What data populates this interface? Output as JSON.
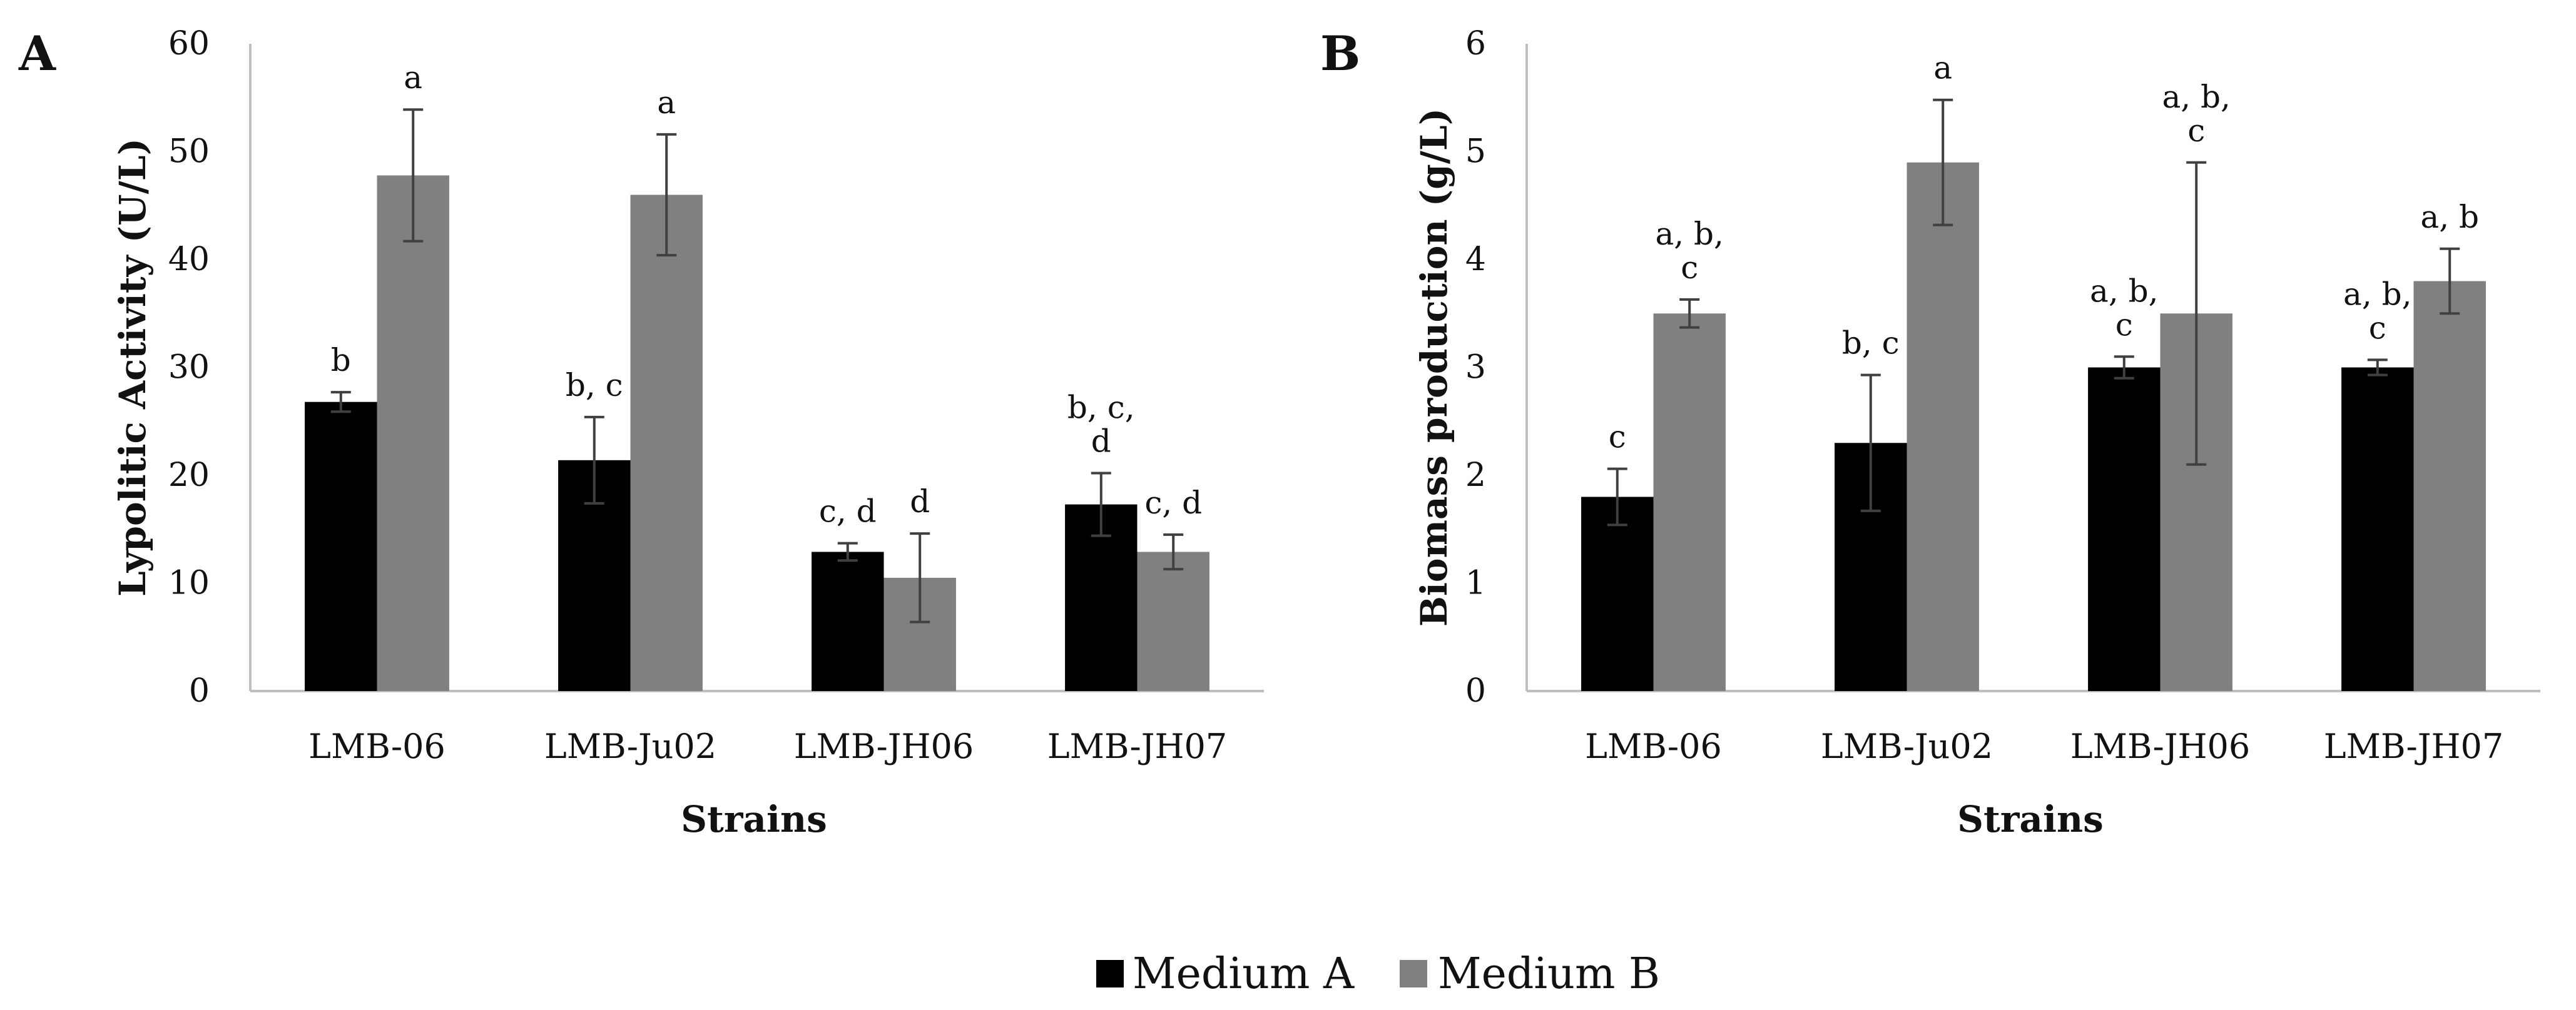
{
  "colors": {
    "medium_a": "#000000",
    "medium_b": "#808080",
    "axis": "#bfbfbf",
    "error": "#404040"
  },
  "legend": {
    "items": [
      {
        "label": "Medium A"
      },
      {
        "label": "Medium B"
      }
    ]
  },
  "chart_data": [
    {
      "type": "bar",
      "panel": "A",
      "title": "",
      "xlabel": "Strains",
      "ylabel": "Lypolitic Activity (U/L)",
      "ylim": [
        0,
        60
      ],
      "yticks": [
        0,
        10,
        20,
        30,
        40,
        50,
        60
      ],
      "categories": [
        "LMB-06",
        "LMB-Ju02",
        "LMB-JH06",
        "LMB-JH07"
      ],
      "series": [
        {
          "name": "Medium A",
          "values": [
            26.8,
            21.4,
            12.9,
            17.3
          ],
          "errors": [
            0.9,
            4.0,
            0.8,
            2.9
          ],
          "labels": [
            "b",
            "b, c",
            "c, d",
            "b, c, d"
          ]
        },
        {
          "name": "Medium B",
          "values": [
            47.8,
            46.0,
            10.5,
            12.9
          ],
          "errors": [
            6.1,
            5.6,
            4.1,
            1.6
          ],
          "labels": [
            "a",
            "a",
            "d",
            "c, d"
          ]
        }
      ]
    },
    {
      "type": "bar",
      "panel": "B",
      "title": "",
      "xlabel": "Strains",
      "ylabel": "Biomass production (g/L)",
      "ylim": [
        0,
        6
      ],
      "yticks": [
        0,
        1,
        2,
        3,
        4,
        5,
        6
      ],
      "categories": [
        "LMB-06",
        "LMB-Ju02",
        "LMB-JH06",
        "LMB-JH07"
      ],
      "series": [
        {
          "name": "Medium A",
          "values": [
            1.8,
            2.3,
            3.0,
            3.0
          ],
          "errors": [
            0.26,
            0.63,
            0.1,
            0.07
          ],
          "labels": [
            "c",
            "b, c",
            "a, b, c",
            "a, b, c"
          ]
        },
        {
          "name": "Medium B",
          "values": [
            3.5,
            4.9,
            3.5,
            3.8
          ],
          "errors": [
            0.13,
            0.58,
            1.4,
            0.3
          ],
          "labels": [
            "a, b, c",
            "a",
            "a, b, c",
            "a, b"
          ]
        }
      ]
    }
  ]
}
